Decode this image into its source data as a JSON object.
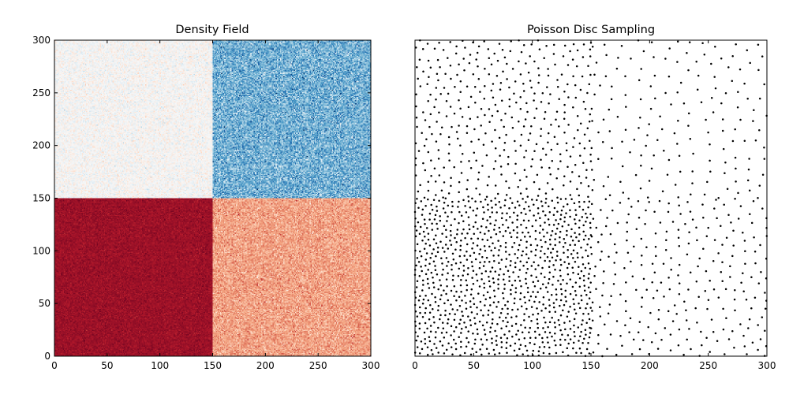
{
  "chart_data": [
    {
      "type": "heatmap",
      "title": "Density Field",
      "xlabel": "",
      "ylabel": "",
      "xlim": [
        0,
        300
      ],
      "ylim": [
        0,
        300
      ],
      "xticks": [
        0,
        50,
        100,
        150,
        200,
        250,
        300
      ],
      "yticks": [
        0,
        50,
        100,
        150,
        200,
        250,
        300
      ],
      "xtick_labels": [
        "0",
        "50",
        "100",
        "150",
        "200",
        "250",
        "300"
      ],
      "ytick_labels": [
        "0",
        "50",
        "100",
        "150",
        "200",
        "250",
        "300"
      ],
      "colormap": "RdBu_r",
      "color_range": [
        0,
        1
      ],
      "grid": false,
      "regions": [
        {
          "x": [
            0,
            150
          ],
          "y": [
            150,
            300
          ],
          "mean_value": 0.5,
          "noise": 0.04
        },
        {
          "x": [
            150,
            300
          ],
          "y": [
            150,
            300
          ],
          "mean_value": 0.26,
          "noise": 0.08
        },
        {
          "x": [
            0,
            150
          ],
          "y": [
            0,
            150
          ],
          "mean_value": 0.93,
          "noise": 0.02
        },
        {
          "x": [
            150,
            300
          ],
          "y": [
            0,
            150
          ],
          "mean_value": 0.7,
          "noise": 0.05
        }
      ]
    },
    {
      "type": "scatter",
      "title": "Poisson Disc Sampling",
      "xlabel": "",
      "ylabel": "",
      "xlim": [
        0,
        300
      ],
      "ylim": [
        0,
        300
      ],
      "xticks": [
        0,
        50,
        100,
        150,
        200,
        250,
        300
      ],
      "xtick_labels": [
        "0",
        "50",
        "100",
        "150",
        "200",
        "250",
        "300"
      ],
      "marker_color": "#000000",
      "grid": false,
      "regions": [
        {
          "x": [
            0,
            150
          ],
          "y": [
            150,
            300
          ],
          "min_distance": 6.2
        },
        {
          "x": [
            150,
            300
          ],
          "y": [
            150,
            300
          ],
          "min_distance": 9.5
        },
        {
          "x": [
            0,
            150
          ],
          "y": [
            0,
            150
          ],
          "min_distance": 3.9
        },
        {
          "x": [
            150,
            300
          ],
          "y": [
            0,
            150
          ],
          "min_distance": 7.5
        }
      ]
    }
  ]
}
